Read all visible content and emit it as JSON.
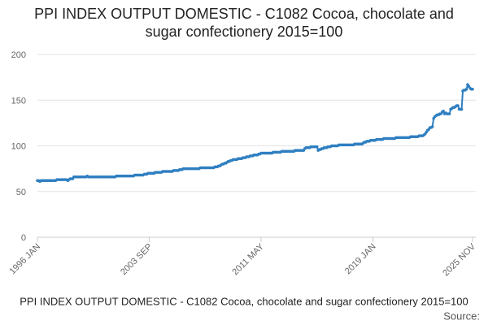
{
  "chart_data": {
    "type": "line",
    "title": "PPI INDEX OUTPUT DOMESTIC - C1082 Cocoa, chocolate and sugar confectionery 2015=100",
    "footer": "PPI INDEX OUTPUT DOMESTIC - C1082 Cocoa, chocolate and sugar confectionery 2015=100",
    "source": "Source:",
    "categories": [
      "1996 JAN",
      null,
      null,
      null,
      null,
      null,
      null,
      null,
      null,
      null,
      null,
      null,
      null,
      null,
      null,
      null,
      null,
      null,
      null,
      null,
      null,
      null,
      null,
      null,
      null,
      null,
      null,
      null,
      null,
      null,
      null,
      null,
      null,
      null,
      null,
      null,
      null,
      null,
      null,
      null,
      null,
      null,
      null,
      null,
      null,
      null,
      null,
      null,
      null,
      null,
      null,
      null,
      null,
      null,
      null,
      null,
      null,
      null,
      null,
      null,
      null,
      null,
      null,
      null,
      null,
      null,
      null,
      null,
      null,
      null,
      null,
      null,
      null,
      null,
      null,
      null,
      null,
      null,
      null,
      null,
      null,
      null,
      null,
      null,
      null,
      null,
      null,
      null,
      null,
      null,
      null,
      null,
      "2003 SEP",
      null,
      null,
      null,
      null,
      null,
      null,
      null,
      null,
      null,
      null,
      null,
      null,
      null,
      null,
      null,
      null,
      null,
      null,
      null,
      null,
      null,
      null,
      null,
      null,
      null,
      null,
      null,
      null,
      null,
      null,
      null,
      null,
      null,
      null,
      null,
      null,
      null,
      null,
      null,
      null,
      null,
      null,
      null,
      null,
      null,
      null,
      null,
      null,
      null,
      null,
      null,
      null,
      null,
      null,
      null,
      null,
      null,
      null,
      null,
      null,
      null,
      null,
      null,
      null,
      null,
      null,
      null,
      null,
      null,
      null,
      null,
      null,
      null,
      null,
      null,
      null,
      null,
      null,
      null,
      null,
      null,
      null,
      null,
      null,
      null,
      null,
      null,
      null,
      null,
      null,
      null,
      "2011 MAY",
      null,
      null,
      null,
      null,
      null,
      null,
      null,
      null,
      null,
      null,
      null,
      null,
      null,
      null,
      null,
      null,
      null,
      null,
      null,
      null,
      null,
      null,
      null,
      null,
      null,
      null,
      null,
      null,
      null,
      null,
      null,
      null,
      null,
      null,
      null,
      null,
      null,
      null,
      null,
      null,
      null,
      null,
      null,
      null,
      null,
      null,
      null,
      null,
      null,
      null,
      null,
      null,
      null,
      null,
      null,
      null,
      null,
      null,
      null,
      null,
      null,
      null,
      null,
      null,
      null,
      null,
      null,
      null,
      null,
      null,
      null,
      null,
      null,
      null,
      null,
      null,
      null,
      null,
      null,
      null,
      null,
      null,
      null,
      null,
      null,
      null,
      null,
      null,
      null,
      null,
      null,
      "2019 JAN",
      null,
      null,
      null,
      null,
      null,
      null,
      null,
      null,
      null,
      null,
      null,
      null,
      null,
      null,
      null,
      null,
      null,
      null,
      null,
      null,
      null,
      null,
      null,
      null,
      null,
      null,
      null,
      null,
      null,
      null,
      null,
      null,
      null,
      null,
      null,
      null,
      null,
      null,
      null,
      null,
      null,
      null,
      null,
      null,
      null,
      null,
      null,
      null,
      null,
      null,
      null,
      null,
      null,
      null,
      null,
      null,
      null,
      null,
      null,
      null,
      null,
      null,
      null,
      null,
      null,
      null,
      null,
      null,
      null,
      null,
      null,
      null,
      null,
      null,
      null,
      null,
      null,
      null,
      null,
      null,
      null,
      "2025 NOV"
    ],
    "values": [
      62,
      62,
      61,
      62,
      62,
      62,
      62,
      62,
      62,
      62,
      62,
      62,
      62,
      62,
      62,
      62,
      63,
      63,
      63,
      63,
      63,
      63,
      63,
      63,
      63,
      62,
      63,
      64,
      64,
      64,
      66,
      66,
      66,
      66,
      66,
      66,
      66,
      66,
      66,
      66,
      66,
      67,
      66,
      66,
      66,
      66,
      66,
      66,
      66,
      66,
      66,
      66,
      66,
      66,
      66,
      66,
      66,
      66,
      66,
      66,
      66,
      66,
      66,
      66,
      66,
      67,
      67,
      67,
      67,
      67,
      67,
      67,
      67,
      67,
      67,
      67,
      67,
      67,
      67,
      67,
      68,
      68,
      68,
      68,
      68,
      68,
      68,
      68,
      69,
      69,
      69,
      70,
      70,
      70,
      70,
      70,
      70,
      71,
      71,
      71,
      71,
      71,
      71,
      72,
      72,
      72,
      72,
      72,
      72,
      72,
      72,
      72,
      73,
      73,
      73,
      73,
      73,
      74,
      74,
      74,
      75,
      75,
      75,
      75,
      75,
      75,
      75,
      75,
      75,
      75,
      75,
      75,
      75,
      75,
      76,
      76,
      76,
      76,
      76,
      76,
      76,
      76,
      76,
      76,
      76,
      76,
      77,
      77,
      77,
      78,
      78,
      79,
      80,
      80,
      81,
      81,
      82,
      83,
      83,
      84,
      84,
      85,
      85,
      85,
      85,
      86,
      86,
      86,
      86,
      87,
      87,
      87,
      88,
      88,
      88,
      89,
      89,
      89,
      90,
      90,
      90,
      90,
      91,
      91,
      92,
      92,
      92,
      92,
      92,
      92,
      92,
      92,
      92,
      92,
      93,
      93,
      93,
      93,
      93,
      93,
      93,
      94,
      94,
      94,
      94,
      94,
      94,
      94,
      94,
      94,
      94,
      94,
      95,
      95,
      95,
      95,
      95,
      95,
      95,
      95,
      97,
      98,
      98,
      98,
      98,
      99,
      99,
      99,
      99,
      99,
      99,
      95,
      96,
      96,
      97,
      97,
      98,
      98,
      98,
      99,
      99,
      99,
      100,
      100,
      100,
      100,
      100,
      100,
      101,
      101,
      101,
      101,
      101,
      101,
      101,
      101,
      101,
      101,
      101,
      101,
      101,
      102,
      102,
      102,
      102,
      102,
      102,
      102,
      103,
      104,
      104,
      105,
      105,
      105,
      106,
      106,
      106,
      106,
      106,
      107,
      107,
      107,
      107,
      107,
      107,
      108,
      108,
      108,
      108,
      108,
      108,
      108,
      108,
      108,
      108,
      109,
      109,
      109,
      109,
      109,
      109,
      109,
      109,
      109,
      109,
      109,
      109,
      110,
      110,
      110,
      110,
      110,
      110,
      110,
      111,
      111,
      111,
      111,
      112,
      113,
      115,
      117,
      118,
      120,
      120,
      121,
      130,
      132,
      133,
      134,
      134,
      135,
      135,
      137,
      138,
      135,
      136,
      135,
      135,
      135,
      140,
      141,
      142,
      142,
      143,
      144,
      144,
      140,
      140,
      140,
      160,
      161,
      161,
      162,
      167,
      165,
      163,
      162,
      162
    ],
    "color": "#2f7fc1",
    "ylim": [
      0,
      200
    ],
    "yticks": [
      0,
      50,
      100,
      150,
      200
    ],
    "grid": true
  }
}
